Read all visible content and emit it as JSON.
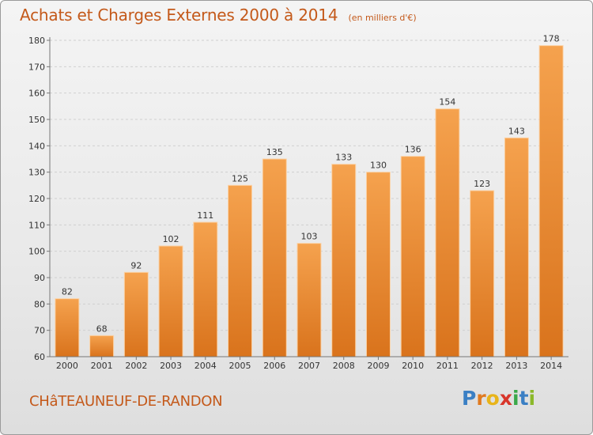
{
  "header": {
    "title": "Achats et Charges Externes 2000 à 2014",
    "unit": "(en milliers d'€)"
  },
  "footer": {
    "location": "CHâTEAUNEUF-DE-RANDON",
    "logo": {
      "letters": [
        "P",
        "r",
        "o",
        "x",
        "i",
        "t",
        "i"
      ],
      "colors": [
        "#3a7fc4",
        "#e07a1f",
        "#e8b41a",
        "#d8352a",
        "#3aa84a",
        "#3a7fc4",
        "#8bb82a"
      ]
    }
  },
  "chart_data": {
    "type": "bar",
    "title": "Achats et Charges Externes 2000 à 2014",
    "subtitle": "(en milliers d'€)",
    "xlabel": "",
    "ylabel": "",
    "categories": [
      "2000",
      "2001",
      "2002",
      "2003",
      "2004",
      "2005",
      "2006",
      "2007",
      "2008",
      "2009",
      "2010",
      "2011",
      "2012",
      "2013",
      "2014"
    ],
    "values": [
      82,
      68,
      92,
      102,
      111,
      125,
      135,
      103,
      133,
      130,
      136,
      154,
      123,
      143,
      178
    ],
    "ylim": [
      60,
      180
    ],
    "yticks": [
      60,
      70,
      80,
      90,
      100,
      110,
      120,
      130,
      140,
      150,
      160,
      170,
      180
    ],
    "grid": true,
    "legend": "none",
    "bar_color_top": "#f5a24e",
    "bar_color_bottom": "#d9731c"
  }
}
